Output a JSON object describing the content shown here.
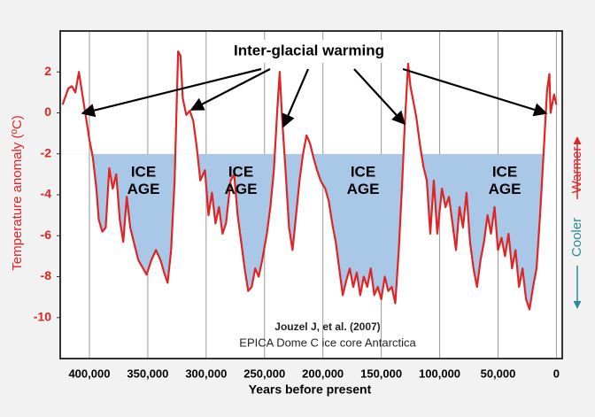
{
  "chart_data": {
    "type": "line",
    "title": "Inter-glacial warming",
    "x_label": "Years before present",
    "y_label": "Temperature anomaly (ºC)",
    "warmer_label": "Warmer",
    "cooler_label": "Cooler",
    "source_line1": "Jouzel J, et al. (2007)",
    "source_line2": "EPICA Dome C ice core Antarctica",
    "ice_age_labels": [
      "ICE AGE",
      "ICE AGE",
      "ICE AGE",
      "ICE AGE"
    ],
    "color": "#e02424",
    "shade_below": -2,
    "shade_color": "#a9c8e8",
    "grid": true,
    "xlim": [
      425000,
      -5000
    ],
    "ylim": [
      -12,
      4
    ],
    "xticks": [
      {
        "value": 400000,
        "label": "400,000"
      },
      {
        "value": 350000,
        "label": "350,000"
      },
      {
        "value": 300000,
        "label": "300,000"
      },
      {
        "value": 250000,
        "label": "250,000"
      },
      {
        "value": 200000,
        "label": "200,000"
      },
      {
        "value": 150000,
        "label": "150,000"
      },
      {
        "value": 100000,
        "label": "100,000"
      },
      {
        "value": 50000,
        "label": "50,000"
      },
      0
    ],
    "yticks": [
      2,
      0,
      -2,
      -4,
      -6,
      -8,
      -10
    ],
    "x": [
      423000,
      418000,
      415000,
      412000,
      409000,
      406000,
      403000,
      400000,
      397000,
      394000,
      392000,
      389000,
      386000,
      383000,
      380000,
      377000,
      374000,
      371000,
      368000,
      365000,
      362000,
      358000,
      354000,
      351000,
      347000,
      343000,
      339000,
      336000,
      333000,
      330000,
      327000,
      324000,
      322000,
      320000,
      317000,
      314000,
      311000,
      308000,
      305000,
      301000,
      298000,
      295000,
      292000,
      289000,
      286000,
      283000,
      279000,
      276000,
      273000,
      270000,
      267000,
      264000,
      261000,
      258000,
      255000,
      252000,
      248000,
      245000,
      242000,
      239000,
      237000,
      235000,
      232000,
      229000,
      226000,
      223000,
      220000,
      217000,
      214000,
      211000,
      208000,
      205000,
      202000,
      198000,
      195000,
      192000,
      189000,
      186000,
      183000,
      180000,
      177000,
      174000,
      171000,
      168000,
      165000,
      162000,
      159000,
      156000,
      153000,
      150000,
      147000,
      144000,
      141000,
      138000,
      135000,
      132000,
      130000,
      127000,
      125000,
      123000,
      120000,
      117000,
      114000,
      111000,
      108000,
      105000,
      102000,
      98000,
      95000,
      92000,
      89000,
      86000,
      83000,
      80000,
      77000,
      74000,
      71000,
      68000,
      65000,
      62000,
      59000,
      56000,
      53000,
      50000,
      47000,
      44000,
      41000,
      38000,
      35000,
      32000,
      29000,
      26000,
      23000,
      20000,
      17000,
      14000,
      11000,
      8000,
      6000,
      5000,
      2000,
      0
    ],
    "values": [
      0.4,
      1.2,
      1.3,
      1.0,
      2.0,
      0.9,
      -0.2,
      -1.3,
      -2.2,
      -3.7,
      -5.2,
      -5.8,
      -5.6,
      -2.7,
      -3.7,
      -3.0,
      -5.2,
      -6.3,
      -4.1,
      -5.6,
      -6.3,
      -7.2,
      -7.6,
      -7.9,
      -7.2,
      -6.7,
      -7.2,
      -7.8,
      -8.3,
      -6.7,
      -3.3,
      3.0,
      2.8,
      0.7,
      -0.1,
      0.1,
      -0.4,
      -1.7,
      -3.3,
      -2.8,
      -5.0,
      -3.9,
      -5.4,
      -4.6,
      -5.9,
      -5.4,
      -3.3,
      -3.0,
      -5.0,
      -6.3,
      -7.6,
      -8.7,
      -8.5,
      -7.6,
      -8.0,
      -7.2,
      -5.9,
      -4.6,
      -2.8,
      0.2,
      2.0,
      -0.2,
      -2.8,
      -5.6,
      -6.7,
      -5.0,
      -3.3,
      -2.0,
      -1.1,
      -1.5,
      -2.2,
      -2.8,
      -3.3,
      -3.7,
      -4.3,
      -5.4,
      -6.3,
      -7.6,
      -8.9,
      -8.2,
      -7.6,
      -8.5,
      -7.8,
      -8.9,
      -8.0,
      -8.5,
      -7.6,
      -8.9,
      -8.5,
      -9.1,
      -8.0,
      -8.7,
      -8.5,
      -9.3,
      -6.7,
      -3.3,
      -0.7,
      2.4,
      1.3,
      0.7,
      -0.2,
      -1.5,
      -2.6,
      -3.3,
      -5.9,
      -3.3,
      -5.9,
      -3.7,
      -4.6,
      -4.1,
      -5.4,
      -6.7,
      -4.6,
      -5.6,
      -3.9,
      -6.3,
      -7.6,
      -8.5,
      -7.2,
      -6.3,
      -5.0,
      -5.9,
      -4.6,
      -6.7,
      -6.1,
      -7.0,
      -5.9,
      -7.6,
      -6.7,
      -8.5,
      -7.6,
      -9.1,
      -9.6,
      -8.5,
      -7.6,
      -5.0,
      -2.0,
      1.1,
      1.9,
      0.0,
      0.9,
      0.4
    ]
  }
}
